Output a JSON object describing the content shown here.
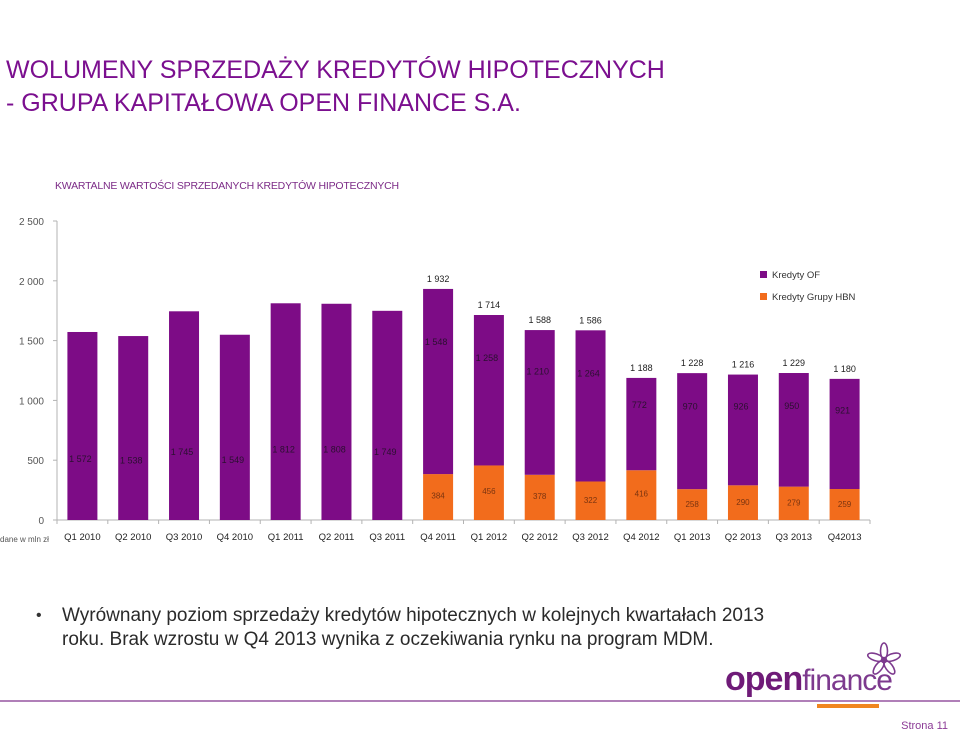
{
  "page": {
    "title_line1": "WOLUMENY SPRZEDAŻY KREDYTÓW HIPOTECZNYCH",
    "title_line2": "- GRUPA KAPITAŁOWA OPEN FINANCE S.A.",
    "bullet": "Wyrównany poziom sprzedaży kredytów hipotecznych w kolejnych kwartałach 2013 roku. Brak wzrostu w Q4 2013 wynika z oczekiwania rynku na program MDM.",
    "logo_part1": "open",
    "logo_part2": "finance",
    "page_number": "Strona 11"
  },
  "chart_data": {
    "type": "bar",
    "stacked": true,
    "title": "KWARTALNE WARTOŚCI SPRZEDANYCH KREDYTÓW HIPOTECZNYCH",
    "unit_note": "dane w mln zł",
    "categories": [
      "Q1 2010",
      "Q2 2010",
      "Q3 2010",
      "Q4 2010",
      "Q1 2011",
      "Q2 2011",
      "Q3 2011",
      "Q4 2011",
      "Q1 2012",
      "Q2 2012",
      "Q3 2012",
      "Q4 2012",
      "Q1 2013",
      "Q2 2013",
      "Q3 2013",
      "Q42013"
    ],
    "series": [
      {
        "name": "Kredyty Grupy HBN",
        "color": "#f26c1c",
        "values": [
          null,
          null,
          null,
          null,
          null,
          null,
          null,
          384,
          456,
          378,
          322,
          416,
          258,
          290,
          279,
          259
        ],
        "labels": [
          "",
          "",
          "",
          "",
          "",
          "",
          "",
          "384",
          "456",
          "378",
          "322",
          "416",
          "258",
          "290",
          "279",
          "259"
        ]
      },
      {
        "name": "Kredyty OF",
        "color": "#7d0c86",
        "values": [
          1572,
          1538,
          1745,
          1549,
          1812,
          1808,
          1749,
          1548,
          1258,
          1210,
          1264,
          772,
          970,
          926,
          950,
          921
        ],
        "labels": [
          "1 572",
          "1 538",
          "1 745",
          "1 549",
          "1 812",
          "1 808",
          "1 749",
          "1 548",
          "1 258",
          "1 210",
          "1 264",
          "772",
          "970",
          "926",
          "950",
          "921"
        ]
      }
    ],
    "totals": [
      null,
      null,
      null,
      null,
      null,
      null,
      null,
      1932,
      1714,
      1588,
      1586,
      1188,
      1228,
      1216,
      1229,
      1180
    ],
    "total_labels": [
      "",
      "",
      "",
      "",
      "",
      "",
      "",
      "1 932",
      "1 714",
      "1 588",
      "1 586",
      "1 188",
      "1 228",
      "1 216",
      "1 229",
      "1 180"
    ],
    "yticks": [
      0,
      500,
      1000,
      1500,
      2000,
      2500
    ],
    "ytick_labels": [
      "0",
      "500",
      "1 000",
      "1 500",
      "2 000",
      "2 500"
    ],
    "ylim": [
      0,
      2500
    ],
    "legend": [
      "Kredyty OF",
      "Kredyty Grupy HBN"
    ],
    "legend_position": "top-right"
  }
}
